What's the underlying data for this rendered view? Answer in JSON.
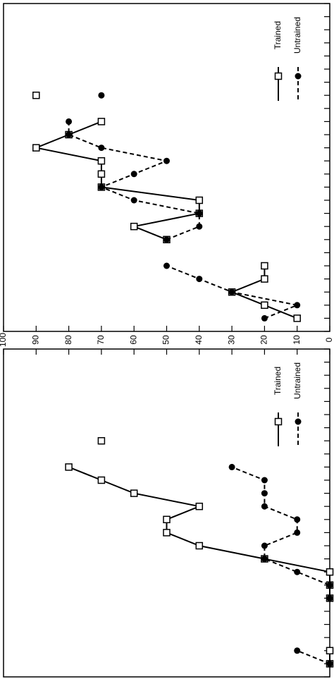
{
  "chart_data": [
    {
      "type": "line",
      "x": [
        1,
        2,
        3,
        4,
        5,
        6,
        7,
        8,
        9,
        10,
        11,
        12,
        13,
        14,
        15,
        16,
        17,
        18
      ],
      "series": [
        {
          "name": "Trained",
          "color": "#000000",
          "line_style": "solid",
          "marker": "square-open",
          "values": [
            10,
            20,
            30,
            20,
            20,
            null,
            50,
            60,
            40,
            40,
            70,
            70,
            70,
            90,
            80,
            70,
            null,
            90
          ]
        },
        {
          "name": "Untrained",
          "color": "#000000",
          "line_style": "dashed",
          "marker": "circle",
          "values": [
            20,
            10,
            30,
            40,
            50,
            null,
            50,
            40,
            40,
            60,
            70,
            60,
            50,
            70,
            80,
            80,
            null,
            70
          ]
        }
      ],
      "xlim": [
        0,
        25
      ],
      "xticks": [
        0,
        1,
        2,
        3,
        4,
        5,
        6,
        7,
        8,
        9,
        10,
        11,
        12,
        13,
        14,
        15,
        16,
        17,
        18,
        19,
        20,
        21,
        22,
        23,
        24,
        25
      ],
      "ylim": [
        0,
        100
      ],
      "yticks": [
        0,
        10,
        20,
        30,
        40,
        50,
        60,
        70,
        80,
        90,
        100
      ]
    },
    {
      "type": "line",
      "x": [
        1,
        2,
        3,
        4,
        5,
        6,
        7,
        8,
        9,
        10,
        11,
        12,
        13,
        14,
        15,
        16,
        17,
        18
      ],
      "series": [
        {
          "name": "Trained",
          "color": "#000000",
          "line_style": "solid",
          "marker": "square-open",
          "values": [
            0,
            0,
            null,
            null,
            null,
            0,
            0,
            0,
            20,
            40,
            50,
            50,
            40,
            60,
            70,
            80,
            null,
            70
          ]
        },
        {
          "name": "Untrained",
          "color": "#000000",
          "line_style": "dashed",
          "marker": "circle",
          "values": [
            0,
            10,
            null,
            null,
            null,
            0,
            0,
            10,
            20,
            20,
            10,
            10,
            20,
            20,
            20,
            30,
            null,
            null
          ]
        }
      ],
      "xlim": [
        0,
        25
      ],
      "xticks": [
        0,
        1,
        2,
        3,
        4,
        5,
        6,
        7,
        8,
        9,
        10,
        11,
        12,
        13,
        14,
        15,
        16,
        17,
        18,
        19,
        20,
        21,
        22,
        23,
        24,
        25
      ],
      "ylim": [
        0,
        100
      ],
      "yticks": [
        0,
        10,
        20,
        30,
        40,
        50,
        60,
        70,
        80,
        90,
        100
      ]
    }
  ]
}
